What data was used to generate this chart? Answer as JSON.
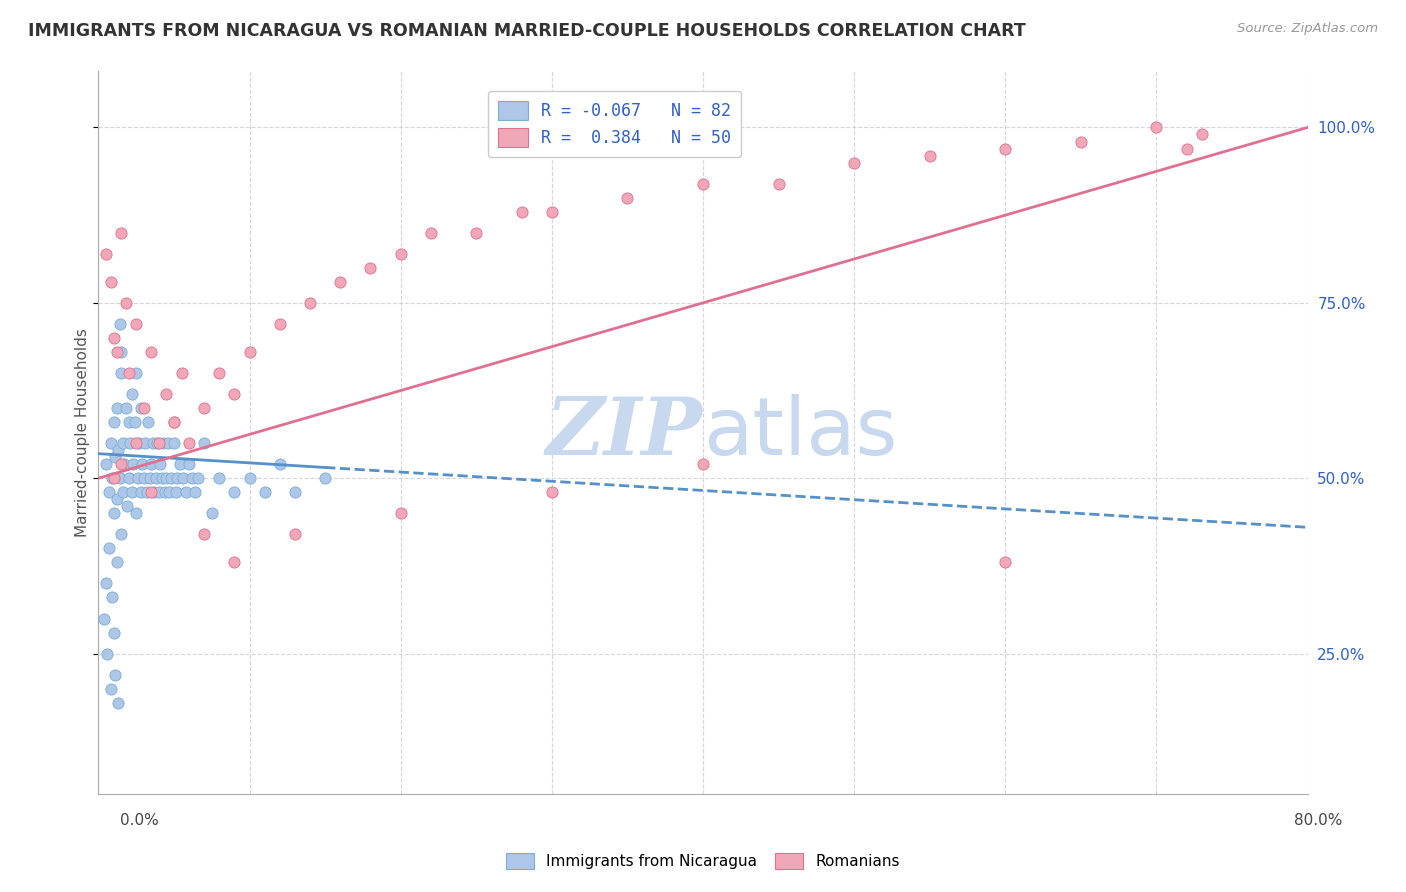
{
  "title": "IMMIGRANTS FROM NICARAGUA VS ROMANIAN MARRIED-COUPLE HOUSEHOLDS CORRELATION CHART",
  "source": "Source: ZipAtlas.com",
  "ylabel": "Married-couple Households",
  "y_ticks": [
    0.25,
    0.5,
    0.75,
    1.0
  ],
  "y_tick_labels": [
    "25.0%",
    "50.0%",
    "75.0%",
    "100.0%"
  ],
  "x_range": [
    0.0,
    0.8
  ],
  "y_range": [
    0.05,
    1.08
  ],
  "color_blue": "#aec6e8",
  "color_blue_edge": "#7aafd4",
  "color_pink": "#f0a8b8",
  "color_pink_edge": "#e07090",
  "color_blue_line": "#5590c8",
  "color_pink_line": "#e07090",
  "color_grid": "#cccccc",
  "watermark_zip": "ZIP",
  "watermark_atlas": "atlas",
  "watermark_color": "#c8d8ee",
  "legend_text_color": "#3060c8",
  "legend_r1": "R = -0.067",
  "legend_n1": "N = 82",
  "legend_r2": "R =  0.384",
  "legend_n2": "N = 50",
  "blue_trend_x": [
    0.0,
    0.8
  ],
  "blue_trend_y": [
    0.535,
    0.43
  ],
  "pink_trend_x": [
    0.0,
    0.8
  ],
  "pink_trend_y": [
    0.5,
    1.0
  ],
  "blue_x": [
    0.005,
    0.007,
    0.008,
    0.009,
    0.01,
    0.01,
    0.011,
    0.012,
    0.012,
    0.013,
    0.014,
    0.015,
    0.015,
    0.016,
    0.016,
    0.017,
    0.018,
    0.019,
    0.02,
    0.02,
    0.021,
    0.022,
    0.022,
    0.023,
    0.024,
    0.025,
    0.025,
    0.026,
    0.027,
    0.028,
    0.028,
    0.029,
    0.03,
    0.031,
    0.032,
    0.033,
    0.034,
    0.035,
    0.036,
    0.037,
    0.038,
    0.039,
    0.04,
    0.041,
    0.042,
    0.043,
    0.044,
    0.045,
    0.046,
    0.047,
    0.048,
    0.05,
    0.051,
    0.052,
    0.054,
    0.056,
    0.058,
    0.06,
    0.062,
    0.064,
    0.066,
    0.07,
    0.075,
    0.08,
    0.09,
    0.1,
    0.11,
    0.12,
    0.13,
    0.15,
    0.004,
    0.005,
    0.006,
    0.007,
    0.008,
    0.009,
    0.01,
    0.011,
    0.012,
    0.013,
    0.014,
    0.015
  ],
  "blue_y": [
    0.52,
    0.48,
    0.55,
    0.5,
    0.58,
    0.45,
    0.53,
    0.6,
    0.47,
    0.54,
    0.5,
    0.65,
    0.42,
    0.55,
    0.48,
    0.52,
    0.6,
    0.46,
    0.58,
    0.5,
    0.55,
    0.48,
    0.62,
    0.52,
    0.58,
    0.45,
    0.65,
    0.5,
    0.55,
    0.48,
    0.6,
    0.52,
    0.5,
    0.55,
    0.48,
    0.58,
    0.5,
    0.52,
    0.55,
    0.48,
    0.5,
    0.55,
    0.48,
    0.52,
    0.5,
    0.55,
    0.48,
    0.5,
    0.55,
    0.48,
    0.5,
    0.55,
    0.48,
    0.5,
    0.52,
    0.5,
    0.48,
    0.52,
    0.5,
    0.48,
    0.5,
    0.55,
    0.45,
    0.5,
    0.48,
    0.5,
    0.48,
    0.52,
    0.48,
    0.5,
    0.3,
    0.35,
    0.25,
    0.4,
    0.2,
    0.33,
    0.28,
    0.22,
    0.38,
    0.18,
    0.72,
    0.68
  ],
  "pink_x": [
    0.005,
    0.008,
    0.01,
    0.012,
    0.015,
    0.018,
    0.02,
    0.025,
    0.03,
    0.035,
    0.04,
    0.045,
    0.05,
    0.055,
    0.06,
    0.07,
    0.08,
    0.09,
    0.1,
    0.12,
    0.14,
    0.16,
    0.18,
    0.2,
    0.22,
    0.25,
    0.28,
    0.3,
    0.35,
    0.4,
    0.45,
    0.5,
    0.55,
    0.6,
    0.65,
    0.7,
    0.72,
    0.73,
    0.01,
    0.015,
    0.025,
    0.035,
    0.05,
    0.07,
    0.09,
    0.13,
    0.2,
    0.3,
    0.4,
    0.6
  ],
  "pink_y": [
    0.82,
    0.78,
    0.7,
    0.68,
    0.85,
    0.75,
    0.65,
    0.72,
    0.6,
    0.68,
    0.55,
    0.62,
    0.58,
    0.65,
    0.55,
    0.6,
    0.65,
    0.62,
    0.68,
    0.72,
    0.75,
    0.78,
    0.8,
    0.82,
    0.85,
    0.85,
    0.88,
    0.88,
    0.9,
    0.92,
    0.92,
    0.95,
    0.96,
    0.97,
    0.98,
    1.0,
    0.97,
    0.99,
    0.5,
    0.52,
    0.55,
    0.48,
    0.58,
    0.42,
    0.38,
    0.42,
    0.45,
    0.48,
    0.52,
    0.38
  ]
}
